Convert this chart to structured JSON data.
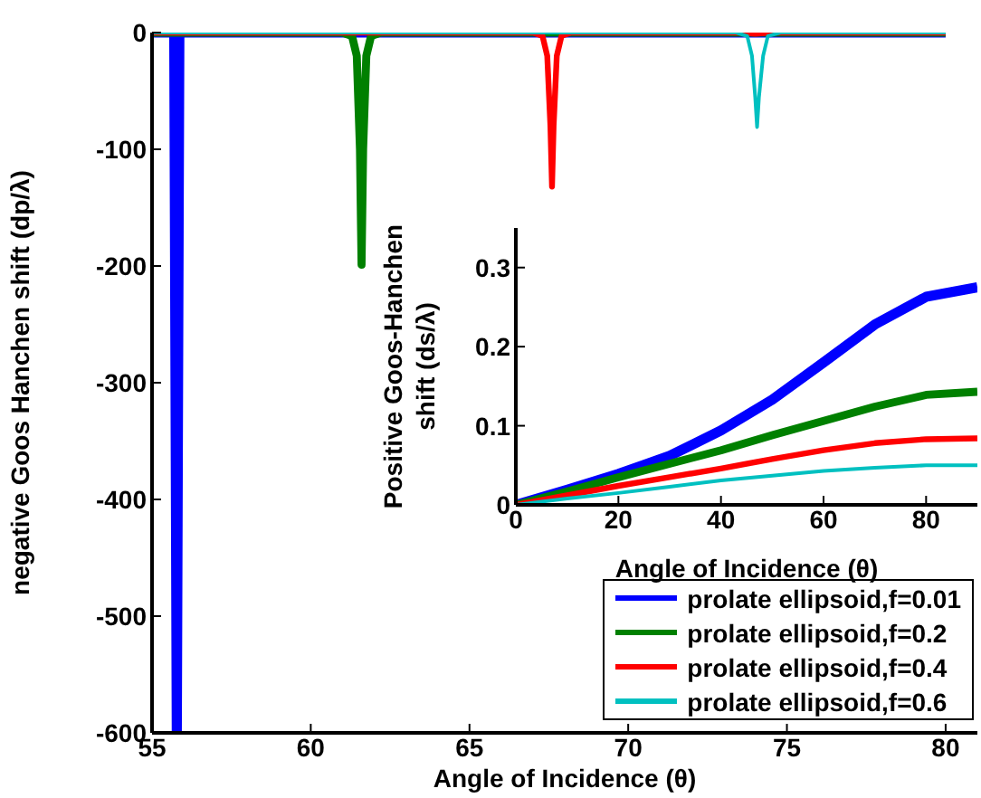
{
  "chart_data": [
    {
      "type": "line",
      "xlabel": "Angle of Incidence (θ)",
      "ylabel": "negative Goos Hanchen shift (dp/λ)",
      "xlim": [
        55,
        81
      ],
      "xticks": [
        55,
        60,
        65,
        70,
        75,
        80
      ],
      "ylim": [
        -600,
        0
      ],
      "yticks": [
        -600,
        -500,
        -400,
        -300,
        -200,
        -100,
        0
      ],
      "legend": "bottom right",
      "grid": false,
      "marker": "none",
      "line_style": "solid",
      "series": [
        {
          "name": "prolate ellipsoid,f=0.01",
          "color": "#0000ff",
          "x": [
            55,
            55.7,
            55.78,
            55.86,
            56,
            80
          ],
          "values": [
            0,
            0,
            -600,
            0,
            0,
            0
          ]
        },
        {
          "name": "prolate ellipsoid,f=0.2",
          "color": "#008000",
          "x": [
            55,
            61,
            61.3,
            61.45,
            61.55,
            61.6,
            61.65,
            61.75,
            61.9,
            62.2,
            80
          ],
          "values": [
            0,
            0,
            -3,
            -20,
            -100,
            -199,
            -100,
            -20,
            -3,
            0,
            0
          ]
        },
        {
          "name": "prolate ellipsoid,f=0.4",
          "color": "#ff0000",
          "x": [
            55,
            67,
            67.3,
            67.45,
            67.55,
            67.6,
            67.65,
            67.75,
            67.9,
            68.2,
            73.5,
            74,
            74.5,
            80
          ],
          "values": [
            0,
            0,
            -3,
            -20,
            -80,
            -132,
            -80,
            -20,
            -3,
            0,
            0,
            -1,
            0,
            0
          ]
        },
        {
          "name": "prolate ellipsoid,f=0.6",
          "color": "#00c0c0",
          "x": [
            55,
            73.4,
            73.75,
            73.9,
            74,
            74.06,
            74.12,
            74.25,
            74.4,
            74.8,
            80
          ],
          "values": [
            0,
            0,
            -3,
            -20,
            -55,
            -81,
            -55,
            -20,
            -3,
            0,
            0
          ]
        }
      ]
    },
    {
      "type": "line",
      "xlabel": "Angle of Incidence (θ)",
      "ylabel": "Positive Goos-Hanchen shift (ds/λ)",
      "xlim": [
        0,
        90
      ],
      "xticks": [
        0,
        20,
        40,
        60,
        80
      ],
      "ylim": [
        0,
        0.35
      ],
      "yticks": [
        0,
        0.1,
        0.2,
        0.3
      ],
      "grid": false,
      "marker": "none",
      "line_style": "solid",
      "x": [
        0,
        10,
        20,
        30,
        40,
        50,
        60,
        70,
        80,
        90
      ],
      "series": [
        {
          "color": "#0000ff",
          "values": [
            0,
            0.019,
            0.039,
            0.062,
            0.094,
            0.133,
            0.18,
            0.228,
            0.263,
            0.275
          ]
        },
        {
          "color": "#008000",
          "values": [
            0,
            0.017,
            0.035,
            0.052,
            0.069,
            0.088,
            0.106,
            0.124,
            0.139,
            0.143
          ]
        },
        {
          "color": "#ff0000",
          "values": [
            0,
            0.012,
            0.024,
            0.035,
            0.046,
            0.058,
            0.069,
            0.078,
            0.083,
            0.084
          ]
        },
        {
          "color": "#00c0c0",
          "values": [
            0,
            0.008,
            0.015,
            0.023,
            0.031,
            0.037,
            0.043,
            0.047,
            0.05,
            0.05
          ]
        }
      ]
    }
  ]
}
